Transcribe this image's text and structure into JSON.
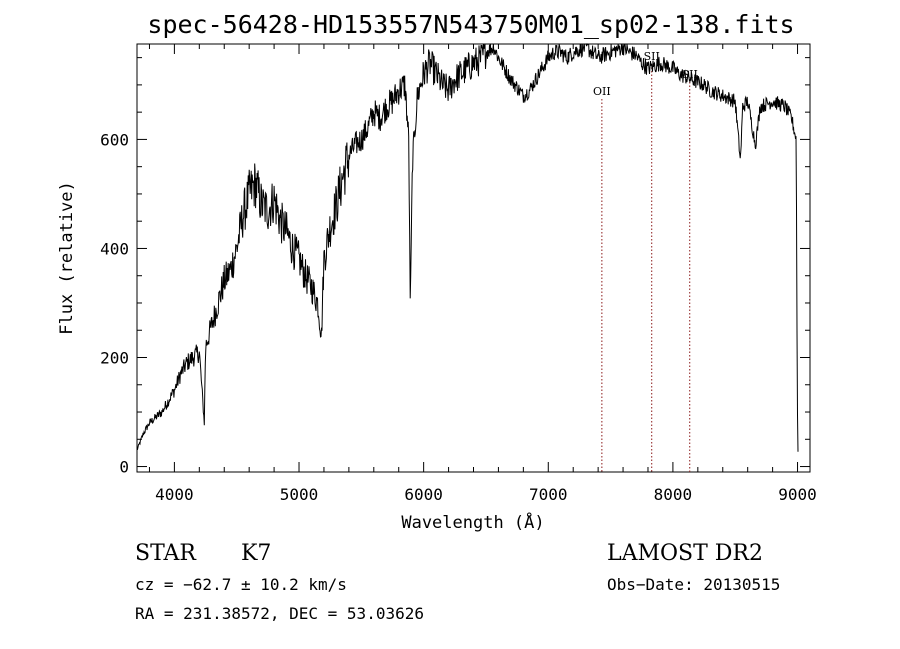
{
  "chart_data": {
    "type": "line",
    "title": "spec-56428-HD153557N543750M01_sp02-138.fits",
    "xlabel": "Wavelength (Å)",
    "ylabel": "Flux (relative)",
    "xlim": [
      3700,
      9100
    ],
    "ylim": [
      -10,
      775
    ],
    "x_ticks": [
      4000,
      5000,
      6000,
      7000,
      8000,
      9000
    ],
    "y_ticks": [
      0,
      200,
      400,
      600
    ],
    "grid": false,
    "line_color": "#000000",
    "marker_color": "#8b1a1a",
    "series": [
      {
        "x": [
          3700,
          3750,
          3800,
          3850,
          3900,
          3950,
          4000,
          4050,
          4100,
          4150,
          4200,
          4240,
          4250,
          4300,
          4350,
          4400,
          4450,
          4500,
          4550,
          4600,
          4650,
          4700,
          4750,
          4800,
          4850,
          4900,
          4950,
          5000,
          5050,
          5100,
          5150,
          5180,
          5200,
          5250,
          5300,
          5350,
          5400,
          5450,
          5500,
          5550,
          5600,
          5650,
          5700,
          5750,
          5800,
          5850,
          5880,
          5893,
          5910,
          5950,
          6000,
          6050,
          6100,
          6150,
          6200,
          6250,
          6300,
          6350,
          6400,
          6450,
          6500,
          6563,
          6600,
          6650,
          6700,
          6750,
          6800,
          6850,
          6900,
          6950,
          7000,
          7050,
          7100,
          7150,
          7200,
          7250,
          7300,
          7350,
          7400,
          7450,
          7500,
          7550,
          7600,
          7650,
          7700,
          7750,
          7800,
          7850,
          7900,
          7950,
          8000,
          8050,
          8100,
          8150,
          8200,
          8250,
          8300,
          8350,
          8400,
          8450,
          8500,
          8542,
          8560,
          8600,
          8662,
          8700,
          8750,
          8800,
          8850,
          8900,
          8950,
          8990,
          8998,
          9005
        ],
        "y": [
          30,
          60,
          80,
          90,
          100,
          120,
          140,
          170,
          190,
          200,
          210,
          80,
          220,
          260,
          300,
          340,
          360,
          400,
          460,
          500,
          520,
          480,
          470,
          490,
          450,
          430,
          400,
          380,
          350,
          330,
          300,
          240,
          380,
          440,
          480,
          530,
          570,
          590,
          600,
          620,
          650,
          640,
          660,
          670,
          690,
          700,
          600,
          290,
          560,
          680,
          720,
          740,
          720,
          700,
          690,
          710,
          720,
          730,
          740,
          745,
          760,
          770,
          750,
          730,
          710,
          695,
          680,
          690,
          710,
          730,
          750,
          760,
          760,
          750,
          760,
          765,
          770,
          760,
          750,
          755,
          760,
          765,
          770,
          760,
          755,
          740,
          730,
          735,
          740,
          735,
          730,
          720,
          715,
          710,
          705,
          700,
          690,
          685,
          680,
          675,
          670,
          560,
          660,
          670,
          590,
          660,
          665,
          670,
          665,
          660,
          640,
          600,
          130,
          10
        ]
      }
    ],
    "lines": [
      {
        "label": "OII",
        "wavelength": 7430
      },
      {
        "label": "SII",
        "wavelength": 7830
      },
      {
        "label": "SII",
        "wavelength": 8135
      }
    ]
  },
  "footer": {
    "object_class": "STAR",
    "subclass": "K7",
    "survey": "LAMOST DR2",
    "cz": "cz = −62.7 ± 10.2 km/s",
    "obs_date": "Obs−Date: 20130515",
    "coords": "RA = 231.38572, DEC =  53.03626"
  }
}
